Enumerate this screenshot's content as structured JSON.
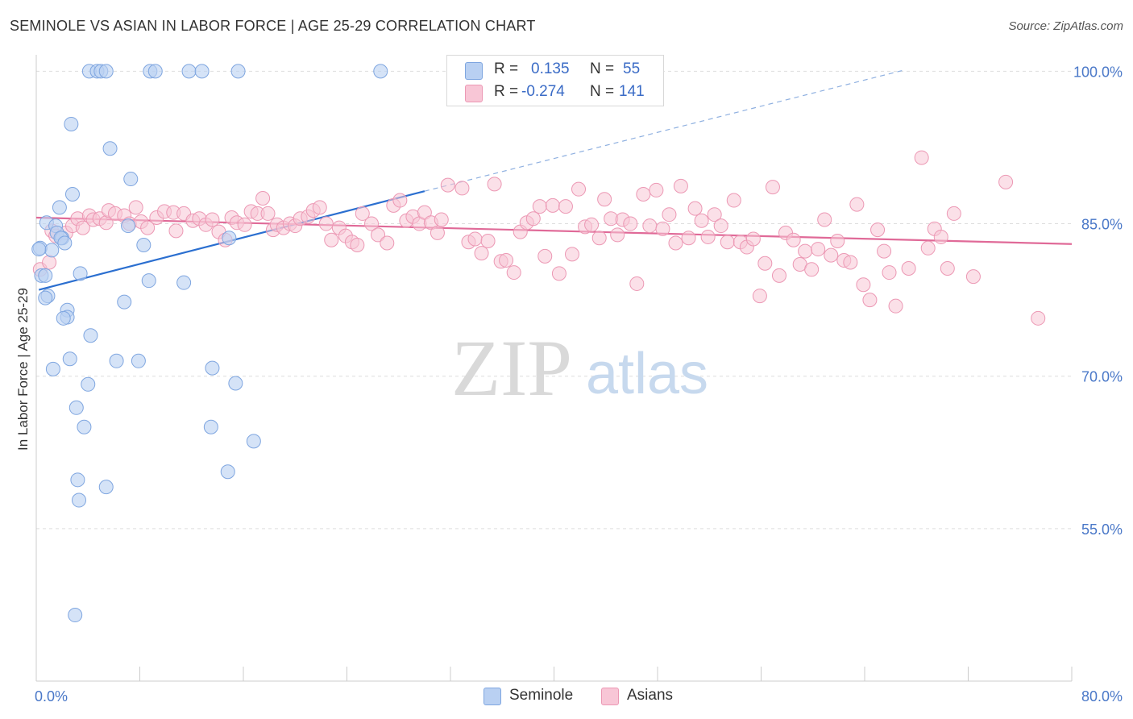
{
  "title": "SEMINOLE VS ASIAN IN LABOR FORCE | AGE 25-29 CORRELATION CHART",
  "source": "Source: ZipAtlas.com",
  "watermark": {
    "zip": "ZIP",
    "atlas": "atlas"
  },
  "legend_top": {
    "rows": [
      {
        "r_label": "R =",
        "r_value": "0.135",
        "n_label": "N =",
        "n_value": "55"
      },
      {
        "r_label": "R =",
        "r_value": "-0.274",
        "n_label": "N =",
        "n_value": "141"
      }
    ]
  },
  "legend_bottom": {
    "seminole": "Seminole",
    "asians": "Asians"
  },
  "colors": {
    "seminole_fill": "#b9d0f2",
    "seminole_stroke": "#7fa6e0",
    "seminole_line": "#2b6fd0",
    "asian_fill": "#f8c6d6",
    "asian_stroke": "#ec98b4",
    "asian_line": "#e06a98",
    "tick_label": "#4a78c8",
    "grid": "#dddddd"
  },
  "chart_data": {
    "type": "scatter",
    "title": "SEMINOLE VS ASIAN IN LABOR FORCE | AGE 25-29 CORRELATION CHART",
    "xlabel": "",
    "ylabel": "In Labor Force | Age 25-29",
    "xlim": [
      0,
      80
    ],
    "ylim": [
      40,
      101.3
    ],
    "x_tick_labels": [
      {
        "value": 0,
        "label": "0.0%"
      },
      {
        "value": 80,
        "label": "80.0%"
      }
    ],
    "y_tick_labels": [
      {
        "value": 100,
        "label": "100.0%"
      },
      {
        "value": 85,
        "label": "85.0%"
      },
      {
        "value": 70,
        "label": "70.0%"
      },
      {
        "value": 55,
        "label": "55.0%"
      }
    ],
    "x_minor_ticks": [
      0,
      8,
      16,
      24,
      32,
      40,
      48,
      56,
      64,
      72,
      80
    ],
    "series": [
      {
        "name": "Seminole",
        "R": 0.135,
        "N": 55,
        "trend": {
          "x0": 0.2,
          "y0": 78.5,
          "x1": 30,
          "y1": 88.2,
          "dash_x1": 67,
          "dash_y1": 100.1
        },
        "points": [
          [
            4.1,
            100
          ],
          [
            4.7,
            100
          ],
          [
            5.0,
            100
          ],
          [
            5.4,
            100
          ],
          [
            8.8,
            100
          ],
          [
            9.2,
            100
          ],
          [
            11.8,
            100
          ],
          [
            12.8,
            100
          ],
          [
            15.6,
            100
          ],
          [
            26.6,
            100
          ],
          [
            2.7,
            94.8
          ],
          [
            5.7,
            92.4
          ],
          [
            7.3,
            89.4
          ],
          [
            2.8,
            87.9
          ],
          [
            1.8,
            86.6
          ],
          [
            0.8,
            85.1
          ],
          [
            1.5,
            84.8
          ],
          [
            7.1,
            84.8
          ],
          [
            1.6,
            84.1
          ],
          [
            2.0,
            83.6
          ],
          [
            1.9,
            83.6
          ],
          [
            14.9,
            83.6
          ],
          [
            2.2,
            83.1
          ],
          [
            8.3,
            82.9
          ],
          [
            0.3,
            82.6
          ],
          [
            1.2,
            82.4
          ],
          [
            3.4,
            80.1
          ],
          [
            0.4,
            79.9
          ],
          [
            0.7,
            79.9
          ],
          [
            8.7,
            79.4
          ],
          [
            11.4,
            79.2
          ],
          [
            0.9,
            77.9
          ],
          [
            0.7,
            77.7
          ],
          [
            6.8,
            77.3
          ],
          [
            2.4,
            76.5
          ],
          [
            2.4,
            75.8
          ],
          [
            2.1,
            75.7
          ],
          [
            4.2,
            74.0
          ],
          [
            2.6,
            71.7
          ],
          [
            6.2,
            71.5
          ],
          [
            7.9,
            71.5
          ],
          [
            13.6,
            70.8
          ],
          [
            1.3,
            70.7
          ],
          [
            4.0,
            69.2
          ],
          [
            15.4,
            69.3
          ],
          [
            3.1,
            66.9
          ],
          [
            3.7,
            65.0
          ],
          [
            13.5,
            65.0
          ],
          [
            16.8,
            63.6
          ],
          [
            14.8,
            60.6
          ],
          [
            3.2,
            59.8
          ],
          [
            5.4,
            59.1
          ],
          [
            3.3,
            57.8
          ],
          [
            3.0,
            46.5
          ],
          [
            0.2,
            82.5
          ]
        ]
      },
      {
        "name": "Asians",
        "R": -0.274,
        "N": 141,
        "trend": {
          "x0": 0,
          "y0": 85.6,
          "x1": 80,
          "y1": 83.0
        },
        "points": [
          [
            0.3,
            80.5
          ],
          [
            1.0,
            81.2
          ],
          [
            1.2,
            84.3
          ],
          [
            1.5,
            83.8
          ],
          [
            2.3,
            84.1
          ],
          [
            2.8,
            84.8
          ],
          [
            3.2,
            85.5
          ],
          [
            3.6,
            84.6
          ],
          [
            4.1,
            85.8
          ],
          [
            4.4,
            85.4
          ],
          [
            4.9,
            85.5
          ],
          [
            5.4,
            85.1
          ],
          [
            5.6,
            86.3
          ],
          [
            6.1,
            86.0
          ],
          [
            6.8,
            85.8
          ],
          [
            7.2,
            85.0
          ],
          [
            7.7,
            86.6
          ],
          [
            8.1,
            85.2
          ],
          [
            8.6,
            84.6
          ],
          [
            9.3,
            85.6
          ],
          [
            9.9,
            86.2
          ],
          [
            10.6,
            86.1
          ],
          [
            10.8,
            84.3
          ],
          [
            11.4,
            86.0
          ],
          [
            12.1,
            85.3
          ],
          [
            12.6,
            85.5
          ],
          [
            13.1,
            84.9
          ],
          [
            13.6,
            85.4
          ],
          [
            14.1,
            84.2
          ],
          [
            14.6,
            83.4
          ],
          [
            15.1,
            85.6
          ],
          [
            15.5,
            85.1
          ],
          [
            16.1,
            84.9
          ],
          [
            16.6,
            86.2
          ],
          [
            17.1,
            86.0
          ],
          [
            17.5,
            87.5
          ],
          [
            17.9,
            86.0
          ],
          [
            18.3,
            84.4
          ],
          [
            18.6,
            84.9
          ],
          [
            19.1,
            84.6
          ],
          [
            19.6,
            85.0
          ],
          [
            20.0,
            84.8
          ],
          [
            20.4,
            85.5
          ],
          [
            21.0,
            85.7
          ],
          [
            21.4,
            86.3
          ],
          [
            21.9,
            86.6
          ],
          [
            22.4,
            85.0
          ],
          [
            22.8,
            83.4
          ],
          [
            23.4,
            84.6
          ],
          [
            23.9,
            83.8
          ],
          [
            24.4,
            83.2
          ],
          [
            24.8,
            82.9
          ],
          [
            25.2,
            86.0
          ],
          [
            25.9,
            85.0
          ],
          [
            26.4,
            83.9
          ],
          [
            27.1,
            83.1
          ],
          [
            27.6,
            86.8
          ],
          [
            28.1,
            87.3
          ],
          [
            28.6,
            85.3
          ],
          [
            29.1,
            85.7
          ],
          [
            29.6,
            85.0
          ],
          [
            30.0,
            86.1
          ],
          [
            30.5,
            85.1
          ],
          [
            31.0,
            84.1
          ],
          [
            31.3,
            85.4
          ],
          [
            31.8,
            88.8
          ],
          [
            32.9,
            88.5
          ],
          [
            33.4,
            83.2
          ],
          [
            33.9,
            83.5
          ],
          [
            34.4,
            82.1
          ],
          [
            34.9,
            83.3
          ],
          [
            35.4,
            88.9
          ],
          [
            35.9,
            81.3
          ],
          [
            36.3,
            81.4
          ],
          [
            36.9,
            80.2
          ],
          [
            37.4,
            84.2
          ],
          [
            37.9,
            85.1
          ],
          [
            38.4,
            85.5
          ],
          [
            38.9,
            86.7
          ],
          [
            39.3,
            81.8
          ],
          [
            39.9,
            86.8
          ],
          [
            40.4,
            80.1
          ],
          [
            40.9,
            86.7
          ],
          [
            41.4,
            82.0
          ],
          [
            41.9,
            88.4
          ],
          [
            42.4,
            84.7
          ],
          [
            42.9,
            84.9
          ],
          [
            43.5,
            83.6
          ],
          [
            43.9,
            87.4
          ],
          [
            44.4,
            85.5
          ],
          [
            44.9,
            83.9
          ],
          [
            45.3,
            85.4
          ],
          [
            45.9,
            85.0
          ],
          [
            46.4,
            79.1
          ],
          [
            46.9,
            87.9
          ],
          [
            47.4,
            84.8
          ],
          [
            47.9,
            88.3
          ],
          [
            48.4,
            84.5
          ],
          [
            48.9,
            85.9
          ],
          [
            49.4,
            83.1
          ],
          [
            49.8,
            88.7
          ],
          [
            50.4,
            83.6
          ],
          [
            50.9,
            86.5
          ],
          [
            51.4,
            85.3
          ],
          [
            51.9,
            83.7
          ],
          [
            52.4,
            85.9
          ],
          [
            52.9,
            84.8
          ],
          [
            53.4,
            83.2
          ],
          [
            53.9,
            87.3
          ],
          [
            54.4,
            83.2
          ],
          [
            54.9,
            82.7
          ],
          [
            55.4,
            83.5
          ],
          [
            55.9,
            77.9
          ],
          [
            56.3,
            81.1
          ],
          [
            56.9,
            88.6
          ],
          [
            57.4,
            79.9
          ],
          [
            57.9,
            84.1
          ],
          [
            58.5,
            83.4
          ],
          [
            59.0,
            81.0
          ],
          [
            59.4,
            82.3
          ],
          [
            59.9,
            80.5
          ],
          [
            60.4,
            82.5
          ],
          [
            60.9,
            85.4
          ],
          [
            61.4,
            81.9
          ],
          [
            61.9,
            83.3
          ],
          [
            62.4,
            81.4
          ],
          [
            62.9,
            81.2
          ],
          [
            63.4,
            86.9
          ],
          [
            63.9,
            79.0
          ],
          [
            64.4,
            77.5
          ],
          [
            65.0,
            84.4
          ],
          [
            65.5,
            82.3
          ],
          [
            65.9,
            80.2
          ],
          [
            66.4,
            76.9
          ],
          [
            67.4,
            80.6
          ],
          [
            68.4,
            91.5
          ],
          [
            68.9,
            82.6
          ],
          [
            69.4,
            84.5
          ],
          [
            69.9,
            83.7
          ],
          [
            70.4,
            80.6
          ],
          [
            70.9,
            86.0
          ],
          [
            72.4,
            79.8
          ],
          [
            74.9,
            89.1
          ],
          [
            77.4,
            75.7
          ]
        ]
      }
    ]
  }
}
